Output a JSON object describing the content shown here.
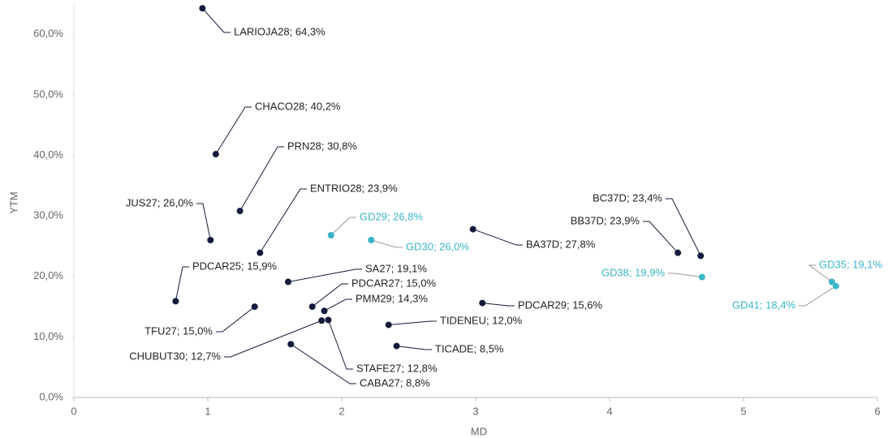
{
  "chart_data": {
    "type": "scatter",
    "xlabel": "MD",
    "ylabel": "YTM",
    "xlim": [
      0,
      6
    ],
    "xticks": [
      0,
      1,
      2,
      3,
      4,
      5,
      6
    ],
    "ylim": [
      0,
      65
    ],
    "yticks": [
      {
        "value": 0,
        "label": "0,0%"
      },
      {
        "value": 10,
        "label": "10,0%"
      },
      {
        "value": 20,
        "label": "20,0%"
      },
      {
        "value": 30,
        "label": "30,0%"
      },
      {
        "value": 40,
        "label": "40,0%"
      },
      {
        "value": 50,
        "label": "50,0%"
      },
      {
        "value": 60,
        "label": "60,0%"
      }
    ],
    "series": [
      {
        "color": "#141a3a",
        "x": [
          0.96,
          1.06,
          1.24,
          1.02,
          1.39,
          2.98,
          4.68,
          4.51,
          0.76,
          1.6,
          1.78,
          1.87,
          1.35,
          1.85,
          1.9,
          1.62,
          2.35,
          2.41,
          3.05
        ],
        "values": [
          64.3,
          40.2,
          30.8,
          26.0,
          23.9,
          27.8,
          23.4,
          23.9,
          15.9,
          19.1,
          15.0,
          14.3,
          15.0,
          12.7,
          12.8,
          8.8,
          12.0,
          8.5,
          15.6
        ],
        "value_labels": [
          "LARIOJA28; 64,3%",
          "CHACO28; 40,2%",
          "PRN28; 30,8%",
          "JUS27; 26,0%",
          "ENTRIO28; 23,9%",
          "BA37D; 27,8%",
          "BC37D; 23,4%",
          "BB37D; 23,9%",
          "PDCAR25; 15,9%",
          "SA27; 19,1%",
          "PDCAR27; 15,0%",
          "PMM29; 14,3%",
          "TFU27; 15,0%",
          "CHUBUT30; 12,7%",
          "STAFE27; 12,8%",
          "CABA27; 8,8%",
          "TIDENEU; 12,0%",
          "TICADE; 8,5%",
          "PDCAR29; 15,6%"
        ]
      },
      {
        "color": "#3ab5c6",
        "x": [
          1.92,
          2.22,
          4.69,
          5.66,
          5.69
        ],
        "values": [
          26.8,
          26.0,
          19.9,
          19.1,
          18.4
        ],
        "value_labels": [
          "GD29; 26,8%",
          "GD30; 26,0%",
          "GD38; 19,9%",
          "GD35; 19,1%",
          "GD41; 18,4%"
        ]
      }
    ]
  }
}
